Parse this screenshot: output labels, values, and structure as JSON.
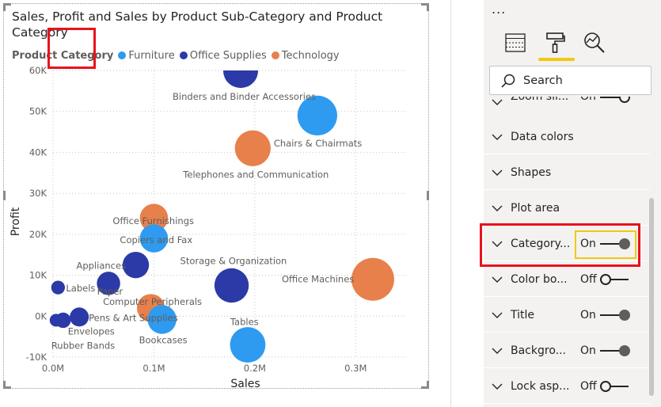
{
  "visual": {
    "title_line1": "Sales, Profit and Sales by Product Sub-Category and Product",
    "title_line2": "Category",
    "legend": {
      "title": "Product Category",
      "items": [
        {
          "label": "Furniture",
          "color": "#2e9bf0"
        },
        {
          "label": "Office Supplies",
          "color": "#2b3aa7"
        },
        {
          "label": "Technology",
          "color": "#e8804b"
        }
      ]
    }
  },
  "chart_data": {
    "type": "scatter",
    "title": "Sales, Profit and Sales by Product Sub-Category and Product Category",
    "xlabel": "Sales",
    "ylabel": "Profit",
    "xlim": [
      0,
      350000
    ],
    "ylim": [
      -10000,
      60000
    ],
    "x_ticks": [
      "0.0M",
      "0.1M",
      "0.2M",
      "0.3M"
    ],
    "y_ticks": [
      "-10K",
      "0K",
      "10K",
      "20K",
      "30K",
      "40K",
      "50K",
      "60K"
    ],
    "grid": true,
    "legend_position": "top-left",
    "size_field": "Sales",
    "points": [
      {
        "label": "Binders and Binder Accessories",
        "category": "Office Supplies",
        "x": 186000,
        "y": 60000
      },
      {
        "label": "Chairs & Chairmats",
        "category": "Furniture",
        "x": 262000,
        "y": 49000
      },
      {
        "label": "Telephones and Communication",
        "category": "Technology",
        "x": 198000,
        "y": 41000
      },
      {
        "label": "Office Furnishings",
        "category": "Technology",
        "x": 100000,
        "y": 24000
      },
      {
        "label": "Copiers and Fax",
        "category": "Furniture",
        "x": 100000,
        "y": 19000
      },
      {
        "label": "Appliances",
        "category": "Office Supplies",
        "x": 82000,
        "y": 12500
      },
      {
        "label": "Storage & Organization",
        "category": "Office Supplies",
        "x": 177000,
        "y": 7500
      },
      {
        "label": "Office Machines",
        "category": "Technology",
        "x": 317000,
        "y": 9000
      },
      {
        "label": "Labels",
        "category": "Office Supplies",
        "x": 5000,
        "y": 7000
      },
      {
        "label": "Computer Peripherals",
        "category": "Office Supplies",
        "x": 55000,
        "y": 8000
      },
      {
        "label": "Paper",
        "category": "Technology",
        "x": 97000,
        "y": 2000
      },
      {
        "label": "Pens & Art Supplies",
        "category": "Office Supplies",
        "x": 26000,
        "y": -200
      },
      {
        "label": "Envelopes",
        "category": "Office Supplies",
        "x": 10000,
        "y": -1000
      },
      {
        "label": "Rubber Bands",
        "category": "Office Supplies",
        "x": 3000,
        "y": -1000
      },
      {
        "label": "Bookcases",
        "category": "Furniture",
        "x": 108000,
        "y": -800
      },
      {
        "label": "Tables",
        "category": "Furniture",
        "x": 193000,
        "y": -7000
      }
    ]
  },
  "pane": {
    "more_label": "...",
    "search_placeholder": "Search",
    "partial_label": "Zoom sli...",
    "partial_state": "On",
    "cards": [
      {
        "label": "Data colors"
      },
      {
        "label": "Shapes"
      },
      {
        "label": "Plot area"
      },
      {
        "label": "Category...",
        "state": "On"
      },
      {
        "label": "Color bo...",
        "state": "Off"
      },
      {
        "label": "Title",
        "state": "On"
      },
      {
        "label": "Backgro...",
        "state": "On"
      },
      {
        "label": "Lock asp...",
        "state": "Off"
      }
    ]
  }
}
